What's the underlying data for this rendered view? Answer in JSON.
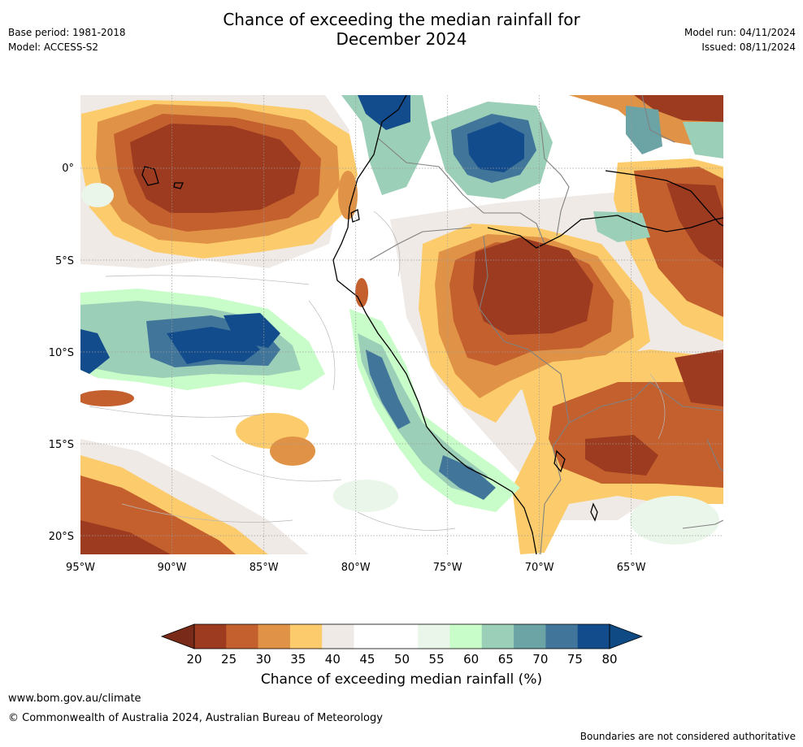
{
  "header": {
    "title_line1": "Chance of exceeding the median rainfall for",
    "title_line2": "December 2024",
    "base_period": "Base period: 1981-2018",
    "model": "Model: ACCESS-S2",
    "model_run": "Model run: 04/11/2024",
    "issued": "Issued: 08/11/2024"
  },
  "map": {
    "lon_labels": [
      "95°W",
      "90°W",
      "85°W",
      "80°W",
      "75°W",
      "70°W",
      "65°W"
    ],
    "lat_labels": [
      "0°",
      "5°S",
      "10°S",
      "15°S",
      "20°S"
    ]
  },
  "colorbar": {
    "title": "Chance of exceeding median rainfall (%)",
    "tick_labels": [
      "20",
      "25",
      "30",
      "35",
      "40",
      "45",
      "50",
      "55",
      "60",
      "65",
      "70",
      "75",
      "80"
    ],
    "colors": [
      "#9c3b20",
      "#c4602e",
      "#e09347",
      "#fccc6c",
      "#efeae6",
      "#ffffff",
      "#ffffff",
      "#eaf6ea",
      "#c8fcc8",
      "#9ccfb7",
      "#6ca3a5",
      "#41769a",
      "#134c8c"
    ],
    "under_color": "#7a2a18",
    "over_color": "#0f4a85"
  },
  "footer": {
    "url": "www.bom.gov.au/climate",
    "copyright": "© Commonwealth of Australia 2024, Australian Bureau of Meteorology",
    "disclaimer": "Boundaries are not considered authoritative"
  }
}
